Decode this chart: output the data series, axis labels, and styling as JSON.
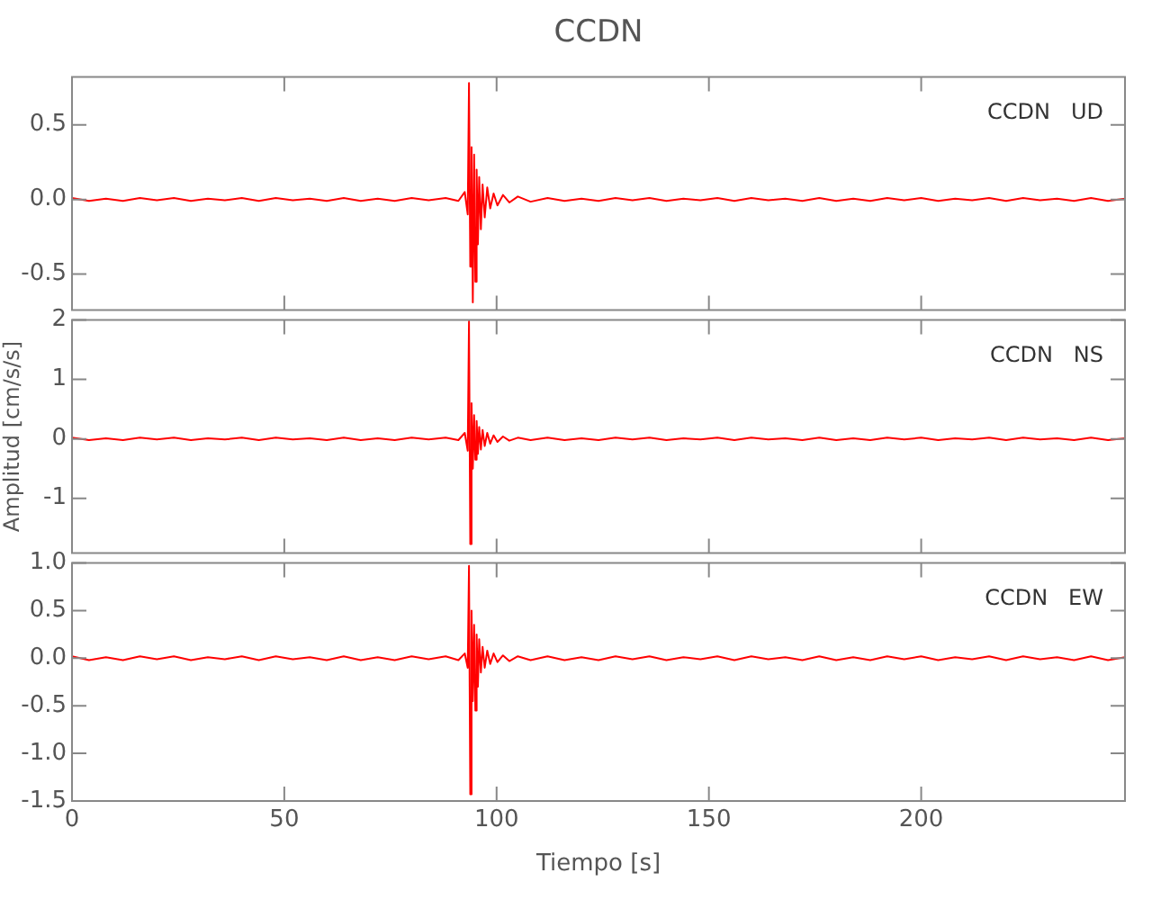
{
  "chart_data": [
    {
      "type": "line",
      "title": "CCDN",
      "annotations": [
        "CCDN   UD"
      ],
      "tick_labels": "y",
      "grid": false,
      "x": [
        0,
        4,
        8,
        12,
        16,
        20,
        24,
        28,
        32,
        36,
        40,
        44,
        48,
        52,
        56,
        60,
        64,
        68,
        72,
        76,
        80,
        84,
        88,
        91,
        92.5,
        93.2,
        93.5,
        93.8,
        94.1,
        94.4,
        94.7,
        95,
        95.3,
        95.6,
        95.9,
        96.3,
        96.7,
        97.2,
        97.8,
        98.5,
        99.3,
        100.2,
        101.5,
        103,
        105,
        108,
        112,
        116,
        120,
        124,
        128,
        132,
        136,
        140,
        144,
        148,
        152,
        156,
        160,
        164,
        168,
        172,
        176,
        180,
        184,
        188,
        192,
        196,
        200,
        204,
        208,
        212,
        216,
        220,
        224,
        228,
        232,
        236,
        240,
        244,
        248
      ],
      "xlim": [
        0,
        248
      ],
      "xticks": [
        0,
        50,
        100,
        150,
        200
      ],
      "ylim": [
        -0.74,
        0.82
      ],
      "yticks": [
        {
          "value": 0.5,
          "label": "0.5"
        },
        {
          "value": 0,
          "label": "0.0"
        },
        {
          "value": -0.5,
          "label": "-0.5"
        }
      ],
      "series": [
        {
          "color": "#ff0000",
          "values": [
            0.01,
            -0.01,
            0.005,
            -0.01,
            0.01,
            -0.005,
            0.01,
            -0.01,
            0.005,
            -0.005,
            0.01,
            -0.01,
            0.01,
            -0.005,
            0.005,
            -0.01,
            0.01,
            -0.01,
            0.005,
            -0.01,
            0.01,
            -0.005,
            0.01,
            -0.01,
            0.05,
            -0.1,
            0.78,
            -0.45,
            0.35,
            -0.69,
            0.3,
            -0.55,
            0.2,
            -0.3,
            0.15,
            -0.2,
            0.1,
            -0.12,
            0.08,
            -0.06,
            0.04,
            -0.04,
            0.03,
            -0.02,
            0.02,
            -0.015,
            0.01,
            -0.01,
            0.005,
            -0.01,
            0.01,
            -0.005,
            0.01,
            -0.01,
            0.005,
            -0.005,
            0.01,
            -0.01,
            0.01,
            -0.005,
            0.005,
            -0.01,
            0.01,
            -0.01,
            0.005,
            -0.01,
            0.01,
            -0.005,
            0.01,
            -0.01,
            0.005,
            -0.005,
            0.01,
            -0.01,
            0.01,
            -0.005,
            0.005,
            -0.01,
            0.01,
            -0.01,
            0.005
          ]
        }
      ]
    },
    {
      "type": "line",
      "ylabel": "Amplitud [cm/s/s]",
      "annotations": [
        "CCDN   NS"
      ],
      "tick_labels": "y",
      "grid": false,
      "x": [
        0,
        4,
        8,
        12,
        16,
        20,
        24,
        28,
        32,
        36,
        40,
        44,
        48,
        52,
        56,
        60,
        64,
        68,
        72,
        76,
        80,
        84,
        88,
        91,
        92.5,
        93.2,
        93.5,
        93.8,
        94.1,
        94.4,
        94.7,
        95,
        95.3,
        95.6,
        95.9,
        96.3,
        96.7,
        97.2,
        97.8,
        98.5,
        99.3,
        100.2,
        101.5,
        103,
        105,
        108,
        112,
        116,
        120,
        124,
        128,
        132,
        136,
        140,
        144,
        148,
        152,
        156,
        160,
        164,
        168,
        172,
        176,
        180,
        184,
        188,
        192,
        196,
        200,
        204,
        208,
        212,
        216,
        220,
        224,
        228,
        232,
        236,
        240,
        244,
        248
      ],
      "xlim": [
        0,
        248
      ],
      "xticks": [
        0,
        50,
        100,
        150,
        200
      ],
      "ylim": [
        -1.92,
        2
      ],
      "yticks": [
        2,
        1,
        0,
        -1
      ],
      "series": [
        {
          "color": "#ff0000",
          "values": [
            0.02,
            -0.02,
            0.01,
            -0.02,
            0.02,
            -0.01,
            0.02,
            -0.02,
            0.01,
            -0.01,
            0.02,
            -0.02,
            0.02,
            -0.01,
            0.01,
            -0.02,
            0.02,
            -0.02,
            0.01,
            -0.02,
            0.02,
            -0.01,
            0.02,
            -0.02,
            0.1,
            -0.2,
            1.98,
            -1.77,
            0.6,
            -0.5,
            0.4,
            -0.35,
            0.3,
            -0.25,
            0.2,
            -0.18,
            0.15,
            -0.12,
            0.1,
            -0.08,
            0.06,
            -0.05,
            0.04,
            -0.03,
            0.02,
            -0.02,
            0.02,
            -0.02,
            0.01,
            -0.02,
            0.02,
            -0.01,
            0.02,
            -0.02,
            0.01,
            -0.01,
            0.02,
            -0.02,
            0.02,
            -0.01,
            0.01,
            -0.02,
            0.02,
            -0.02,
            0.01,
            -0.02,
            0.02,
            -0.01,
            0.02,
            -0.02,
            0.01,
            -0.01,
            0.02,
            -0.02,
            0.02,
            -0.01,
            0.01,
            -0.02,
            0.02,
            -0.02,
            0.01
          ]
        }
      ]
    },
    {
      "type": "line",
      "xlabel": "Tiempo [s]",
      "annotations": [
        "CCDN   EW"
      ],
      "grid": false,
      "x": [
        0,
        4,
        8,
        12,
        16,
        20,
        24,
        28,
        32,
        36,
        40,
        44,
        48,
        52,
        56,
        60,
        64,
        68,
        72,
        76,
        80,
        84,
        88,
        91,
        92.5,
        93.2,
        93.5,
        93.8,
        94.1,
        94.4,
        94.7,
        95,
        95.3,
        95.6,
        95.9,
        96.3,
        96.7,
        97.2,
        97.8,
        98.5,
        99.3,
        100.2,
        101.5,
        103,
        105,
        108,
        112,
        116,
        120,
        124,
        128,
        132,
        136,
        140,
        144,
        148,
        152,
        156,
        160,
        164,
        168,
        172,
        176,
        180,
        184,
        188,
        192,
        196,
        200,
        204,
        208,
        212,
        216,
        220,
        224,
        228,
        232,
        236,
        240,
        244,
        248
      ],
      "xlim": [
        0,
        248
      ],
      "xticks": [
        0,
        50,
        100,
        150,
        200
      ],
      "ylim": [
        -1.5,
        1
      ],
      "yticks": [
        {
          "value": 1,
          "label": "1.0"
        },
        {
          "value": 0.5,
          "label": "0.5"
        },
        {
          "value": 0,
          "label": "0.0"
        },
        {
          "value": -0.5,
          "label": "-0.5"
        },
        {
          "value": -1,
          "label": "-1.0"
        },
        {
          "value": -1.5,
          "label": "-1.5"
        }
      ],
      "series": [
        {
          "color": "#ff0000",
          "values": [
            0.02,
            -0.02,
            0.01,
            -0.02,
            0.02,
            -0.01,
            0.02,
            -0.02,
            0.01,
            -0.01,
            0.02,
            -0.02,
            0.02,
            -0.01,
            0.01,
            -0.02,
            0.02,
            -0.02,
            0.01,
            -0.02,
            0.02,
            -0.01,
            0.02,
            -0.02,
            0.05,
            -0.1,
            0.97,
            -1.43,
            0.5,
            -0.45,
            0.35,
            -0.55,
            0.25,
            -0.3,
            0.2,
            -0.15,
            0.12,
            -0.1,
            0.08,
            -0.06,
            0.05,
            -0.04,
            0.03,
            -0.03,
            0.02,
            -0.02,
            0.02,
            -0.02,
            0.01,
            -0.02,
            0.02,
            -0.01,
            0.02,
            -0.02,
            0.01,
            -0.01,
            0.02,
            -0.02,
            0.02,
            -0.01,
            0.01,
            -0.02,
            0.02,
            -0.02,
            0.01,
            -0.02,
            0.02,
            -0.01,
            0.02,
            -0.02,
            0.01,
            -0.01,
            0.02,
            -0.02,
            0.02,
            -0.01,
            0.01,
            -0.02,
            0.02,
            -0.02,
            0.01
          ]
        }
      ]
    }
  ]
}
